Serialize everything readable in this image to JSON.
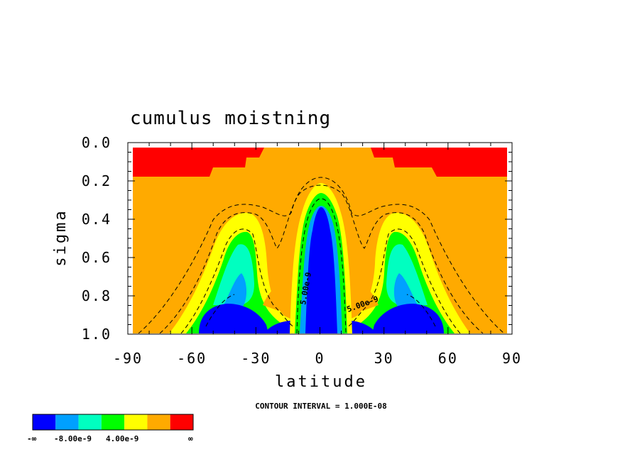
{
  "chart_data": {
    "type": "contour",
    "title": "cumulus moistning",
    "xlabel": "latitude",
    "ylabel": "sigma",
    "xlim": [
      -90,
      90
    ],
    "ylim": [
      1.0,
      0.0
    ],
    "xticks": [
      "-90",
      "-60",
      "-30",
      "0",
      "30",
      "60",
      "90"
    ],
    "xtick_values": [
      -90,
      -60,
      -30,
      0,
      30,
      60,
      90
    ],
    "yticks": [
      "0.0",
      "0.2",
      "0.4",
      "0.6",
      "0.8",
      "1.0"
    ],
    "ytick_values": [
      0.0,
      0.2,
      0.4,
      0.6,
      0.8,
      1.0
    ],
    "contour_interval_text": "CONTOUR INTERVAL = 1.000E-08",
    "contour_labels": [
      "5.00e-9",
      "5.00e-9"
    ],
    "colorbar": {
      "colors": [
        "#0000ff",
        "#00a0ff",
        "#00ffc0",
        "#00ff00",
        "#ffff00",
        "#ffaa00",
        "#ff0000"
      ],
      "labels": [
        "-∞",
        "-8.00e-9",
        "4.00e-9",
        "∞"
      ]
    },
    "levels_description": "negative values (blue) near surface and equatorial core; positive (red) at top"
  }
}
